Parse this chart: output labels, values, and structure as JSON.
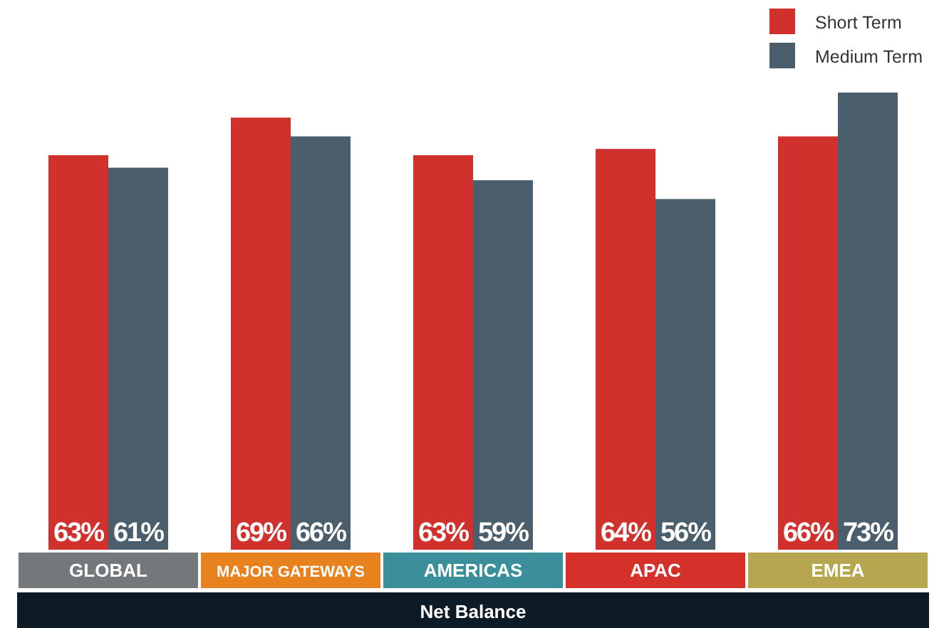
{
  "chart_data": {
    "type": "bar",
    "xlabel": "Net Balance",
    "categories": [
      "GLOBAL",
      "MAJOR GATEWAYS",
      "AMERICAS",
      "APAC",
      "EMEA"
    ],
    "series": [
      {
        "name": "Short Term",
        "color": "#d0312d",
        "values": [
          63,
          69,
          63,
          64,
          66
        ],
        "value_labels": [
          "63%",
          "69%",
          "63%",
          "64%",
          "66%"
        ]
      },
      {
        "name": "Medium Term",
        "color": "#4a5f6b",
        "values": [
          61,
          66,
          59,
          56,
          73
        ],
        "value_labels": [
          "61%",
          "66%",
          "59%",
          "56%",
          "73%"
        ]
      }
    ],
    "legend": "top right"
  }
}
